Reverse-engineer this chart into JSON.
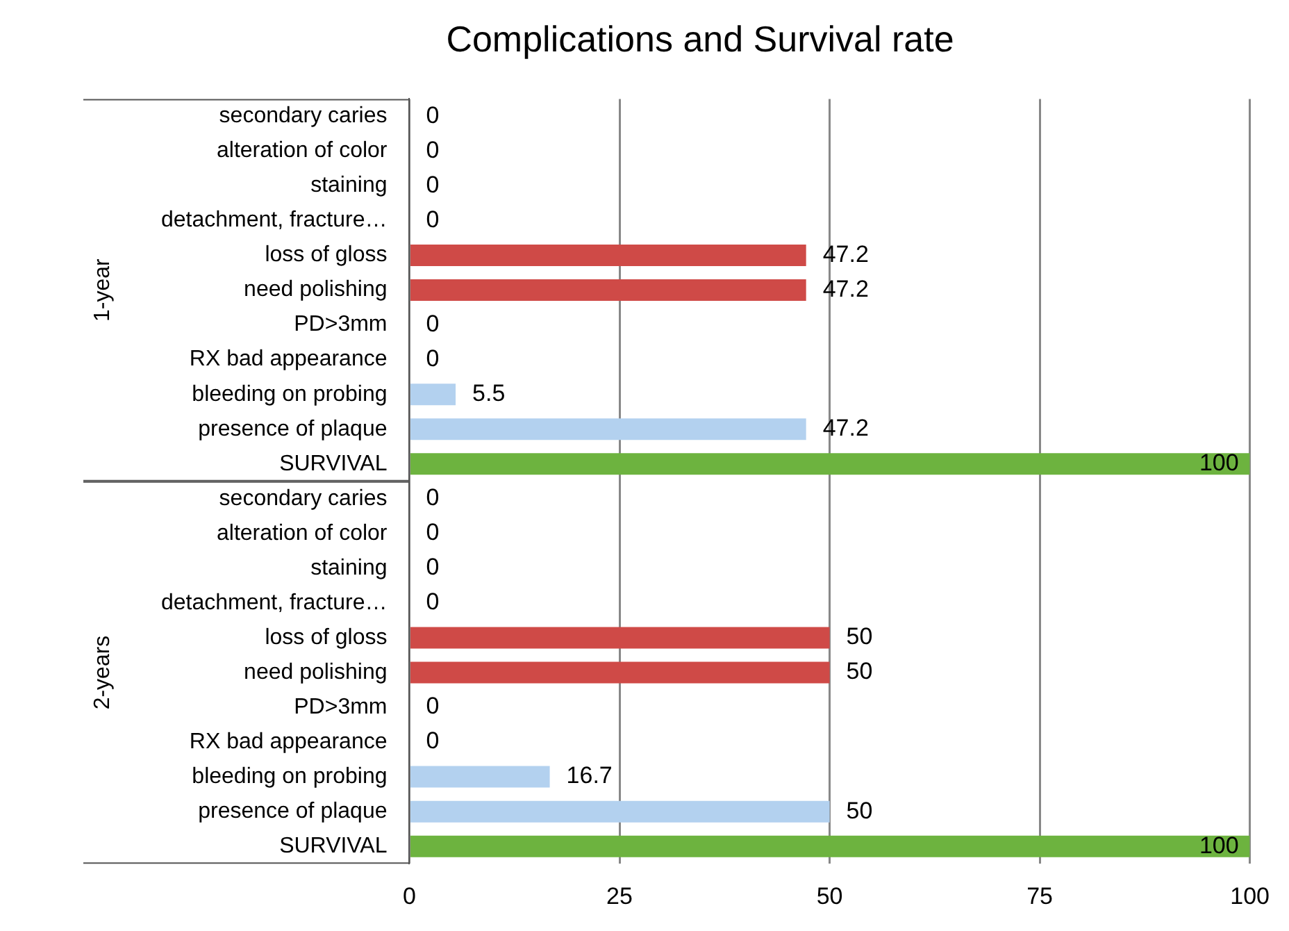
{
  "chart_data": {
    "type": "bar",
    "orientation": "horizontal",
    "title": "Complications and Survival rate",
    "categories": [
      "secondary caries",
      "alteration of color",
      "staining",
      "detachment, fracture…",
      "loss of gloss",
      "need polishing",
      "PD>3mm",
      "RX bad appearance",
      "bleeding on probing",
      "presence of plaque",
      "SURVIVAL",
      "secondary caries",
      "alteration of color",
      "staining",
      "detachment, fracture…",
      "loss of gloss",
      "need polishing",
      "PD>3mm",
      "RX bad appearance",
      "bleeding on probing",
      "presence of plaque",
      "SURVIVAL"
    ],
    "values": [
      0,
      0,
      0,
      0,
      47.2,
      47.2,
      0,
      0,
      5.5,
      47.2,
      100,
      0,
      0,
      0,
      0,
      50,
      50,
      0,
      0,
      16.7,
      50,
      100
    ],
    "colors": [
      "#cf4a47",
      "#cf4a47",
      "#cf4a47",
      "#cf4a47",
      "#cf4a47",
      "#cf4a47",
      "#b3d1ef",
      "#b3d1ef",
      "#b3d1ef",
      "#b3d1ef",
      "#6db33f",
      "#cf4a47",
      "#cf4a47",
      "#cf4a47",
      "#cf4a47",
      "#cf4a47",
      "#cf4a47",
      "#b3d1ef",
      "#b3d1ef",
      "#b3d1ef",
      "#b3d1ef",
      "#6db33f"
    ],
    "xlim": [
      0,
      100
    ],
    "xticks": [
      0,
      25,
      50,
      75,
      100
    ],
    "grid": "x",
    "data_labels": true,
    "legend": false,
    "annotations": [
      "1-year",
      "2-years"
    ]
  }
}
